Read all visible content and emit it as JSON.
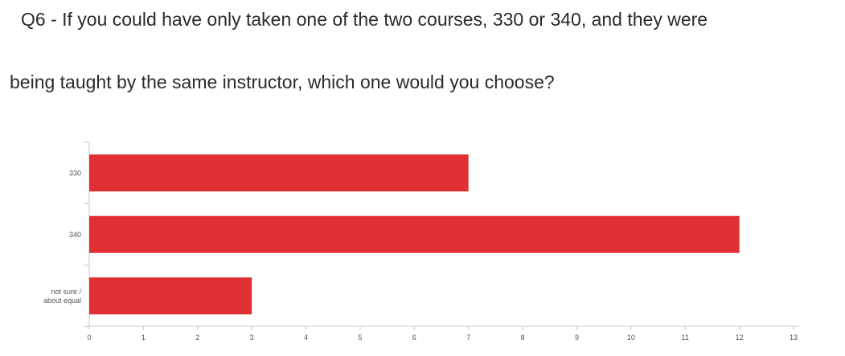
{
  "title": {
    "line1": "Q6 - If you could have only taken one of the two courses, 330 or 340, and they were",
    "line2": "being taught by the same instructor, which one would you choose?"
  },
  "colors": {
    "bar": "#e03034",
    "axis": "#c8c8c8",
    "text": "#555555"
  },
  "chart_data": {
    "type": "bar",
    "orientation": "horizontal",
    "title": "Q6 - If you could have only taken one of the two courses, 330 or 340, and they were being taught by the same instructor, which one would you choose?",
    "categories": [
      "330",
      "340",
      "not sure / about equal"
    ],
    "category_lines": [
      [
        "330"
      ],
      [
        "340"
      ],
      [
        "not sure /",
        "about equal"
      ]
    ],
    "values": [
      7,
      12,
      3
    ],
    "xlim": [
      0,
      13
    ],
    "xticks": [
      0,
      1,
      2,
      3,
      4,
      5,
      6,
      7,
      8,
      9,
      10,
      11,
      12,
      13
    ],
    "grid": false,
    "legend": "none"
  }
}
